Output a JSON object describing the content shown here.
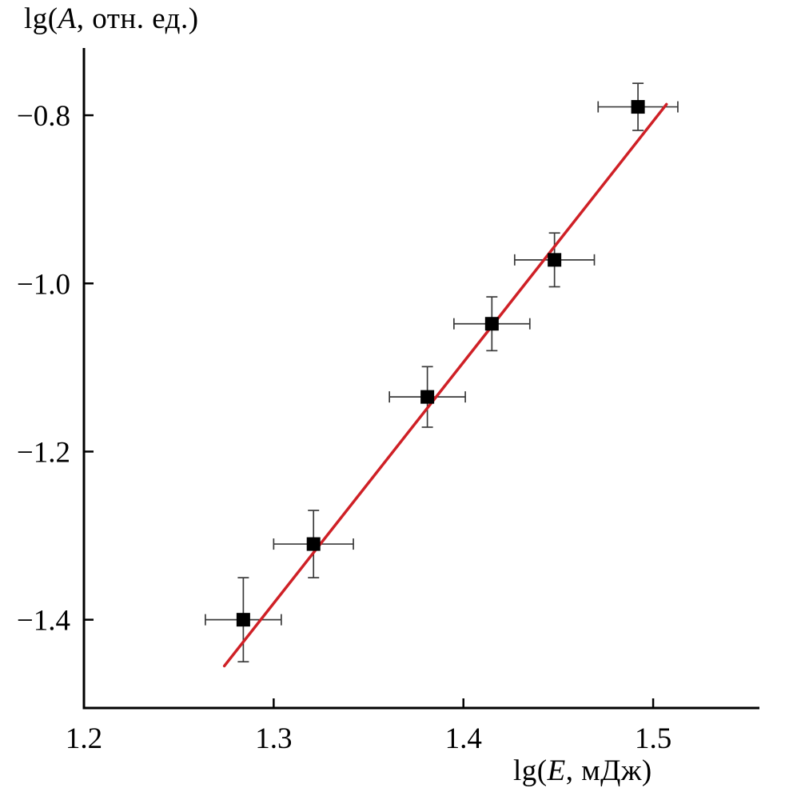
{
  "chart_data": {
    "type": "scatter",
    "title": "",
    "xlabel": {
      "prefix": "lg(",
      "var": "E",
      "suffix": ", мДж)"
    },
    "ylabel": {
      "prefix": "lg(",
      "var": "A",
      "suffix": ", отн. ед.)"
    },
    "xlim": [
      1.2,
      1.556
    ],
    "ylim": [
      -1.505,
      -0.72
    ],
    "x_ticks": [
      1.2,
      1.3,
      1.4,
      1.5
    ],
    "x_tick_labels": [
      "1.2",
      "1.3",
      "1.4",
      "1.5"
    ],
    "y_ticks": [
      -0.8,
      -1.0,
      -1.2,
      -1.4
    ],
    "y_tick_labels": [
      "−0.8",
      "−1.0",
      "−1.2",
      "−1.4"
    ],
    "points": [
      {
        "x": 1.284,
        "y": -1.4,
        "xerr": 0.02,
        "yerr": 0.05
      },
      {
        "x": 1.321,
        "y": -1.31,
        "xerr": 0.021,
        "yerr": 0.04
      },
      {
        "x": 1.381,
        "y": -1.135,
        "xerr": 0.02,
        "yerr": 0.036
      },
      {
        "x": 1.415,
        "y": -1.048,
        "xerr": 0.02,
        "yerr": 0.032
      },
      {
        "x": 1.448,
        "y": -0.972,
        "xerr": 0.021,
        "yerr": 0.032
      },
      {
        "x": 1.492,
        "y": -0.79,
        "xerr": 0.021,
        "yerr": 0.028
      }
    ],
    "fit_line": {
      "x1": 1.274,
      "y1": -1.455,
      "x2": 1.507,
      "y2": -0.787,
      "color": "#cf2026",
      "width": 3.5
    },
    "marker": {
      "shape": "square",
      "size": 17,
      "color": "#000000"
    },
    "errorbar": {
      "color": "#3a3a3a",
      "cap": 14,
      "width": 1.7
    },
    "axis_color": "#000000",
    "grid": false,
    "legend": null
  }
}
